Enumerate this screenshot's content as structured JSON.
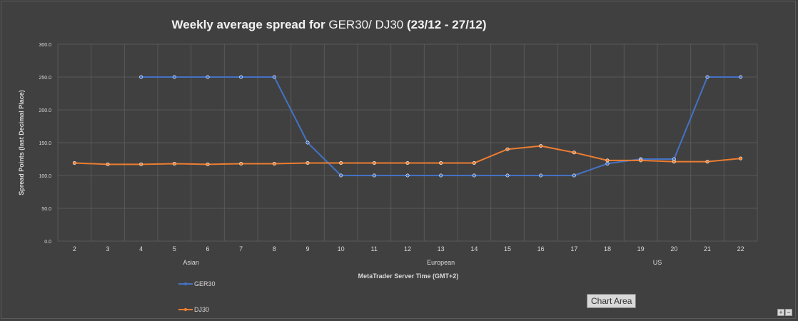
{
  "chart_data": {
    "type": "line",
    "title": {
      "part1": "Weekly average spread for ",
      "part2": "GER30/ DJ30",
      "part3": " (23/12 - 27/12)"
    },
    "xlabel": "MetaTrader Server Time (GMT+2)",
    "ylabel": "Spread Points  (last Decimal Place)",
    "ylim": [
      0,
      300
    ],
    "yticks": [
      "0.0",
      "50.0",
      "100.0",
      "150.0",
      "200.0",
      "250.0",
      "300.0"
    ],
    "categories": [
      "2",
      "3",
      "4",
      "5",
      "6",
      "7",
      "8",
      "9",
      "10",
      "11",
      "12",
      "13",
      "14",
      "15",
      "16",
      "17",
      "18",
      "19",
      "20",
      "21",
      "22"
    ],
    "sessions": [
      {
        "label": "Asian",
        "center": "5.5"
      },
      {
        "label": "European",
        "center": "13"
      },
      {
        "label": "US",
        "center": "19.5"
      }
    ],
    "grid": true,
    "legend_position": "bottom-left",
    "series": [
      {
        "name": "GER30",
        "color": "#4472c4",
        "values": [
          null,
          null,
          250,
          250,
          250,
          250,
          250,
          150,
          100,
          100,
          100,
          100,
          100,
          100,
          100,
          100,
          118,
          125,
          125,
          250,
          250
        ]
      },
      {
        "name": "DJ30",
        "color": "#ed7d31",
        "values": [
          119,
          117,
          117,
          118,
          117,
          118,
          118,
          119,
          119,
          119,
          119,
          119,
          119,
          140,
          145,
          135,
          123,
          123,
          121,
          121,
          126
        ]
      }
    ]
  },
  "overlay": {
    "tooltip": "Chart Area",
    "zoom_in": "+",
    "zoom_out": "−"
  }
}
